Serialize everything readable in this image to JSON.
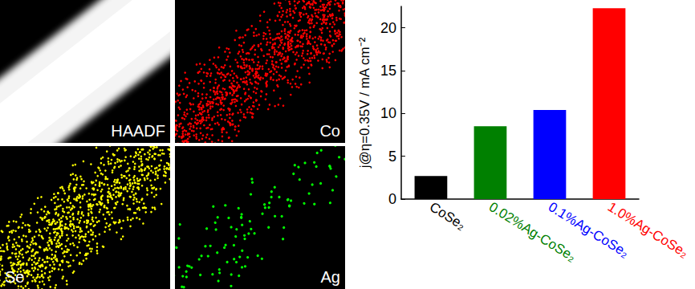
{
  "panels": [
    {
      "label": "HAADF",
      "color": "#ffffff"
    },
    {
      "label": "Co",
      "color": "#ff0000"
    },
    {
      "label": "Se",
      "color": "#ffff00"
    },
    {
      "label": "Ag",
      "color": "#00ff00"
    }
  ],
  "chart_data": {
    "type": "bar",
    "categories": [
      "CoSe₂",
      "0.02%Ag-CoSe₂",
      "0.1%Ag-CoSe₂",
      "1.0%Ag-CoSe₂"
    ],
    "values": [
      2.7,
      8.5,
      10.4,
      22.3
    ],
    "colors": [
      "#000000",
      "#008000",
      "#0000ff",
      "#ff0000"
    ],
    "ylabel": "j@η=0.35V / mA cm⁻²",
    "ylim": [
      0,
      22.5
    ],
    "yticks": [
      0,
      5,
      10,
      15,
      20
    ],
    "grid": false
  }
}
